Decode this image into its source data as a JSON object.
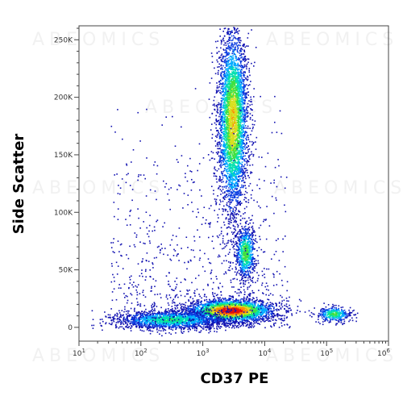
{
  "chart_data": {
    "type": "scatter",
    "style": "density-dot-plot",
    "xlabel": "CD37 PE",
    "ylabel": "Side Scatter",
    "x_scale": "log",
    "xlim": [
      10,
      1000000
    ],
    "ylim": [
      -12000,
      262144
    ],
    "x_ticks": [
      {
        "value": 10,
        "base": "10",
        "exp": "1"
      },
      {
        "value": 100,
        "base": "10",
        "exp": "2"
      },
      {
        "value": 1000,
        "base": "10",
        "exp": "3"
      },
      {
        "value": 10000,
        "base": "10",
        "exp": "4"
      },
      {
        "value": 100000,
        "base": "10",
        "exp": "5"
      },
      {
        "value": 1000000,
        "base": "10",
        "exp": "6"
      }
    ],
    "y_ticks": [
      {
        "value": 0,
        "label": "0"
      },
      {
        "value": 50000,
        "label": "50K"
      },
      {
        "value": 100000,
        "label": "100K"
      },
      {
        "value": 150000,
        "label": "150K"
      },
      {
        "value": 200000,
        "label": "200K"
      },
      {
        "value": 250000,
        "label": "250K"
      }
    ],
    "density_colors": [
      "#1010b0",
      "#0a3ce0",
      "#00aaff",
      "#00e0b0",
      "#40e040",
      "#d8e020",
      "#ff8800",
      "#e01010"
    ],
    "populations": [
      {
        "x_center": 3000,
        "y_center": 180000,
        "x_spread_decades": 0.12,
        "y_spread": 40000,
        "count": 3800,
        "peak": 0.75
      },
      {
        "x_center": 4800,
        "y_center": 65000,
        "x_spread_decades": 0.08,
        "y_spread": 12000,
        "count": 700,
        "peak": 0.6
      },
      {
        "x_center": 2800,
        "y_center": 15000,
        "x_spread_decades": 0.35,
        "y_spread": 5000,
        "count": 2600,
        "peak": 1.0
      },
      {
        "x_center": 300,
        "y_center": 7000,
        "x_spread_decades": 0.45,
        "y_spread": 4000,
        "count": 1800,
        "peak": 0.5
      },
      {
        "x_center": 130000,
        "y_center": 12000,
        "x_spread_decades": 0.14,
        "y_spread": 3500,
        "count": 350,
        "peak": 0.55
      }
    ],
    "watermark": "ABEOMICS"
  }
}
